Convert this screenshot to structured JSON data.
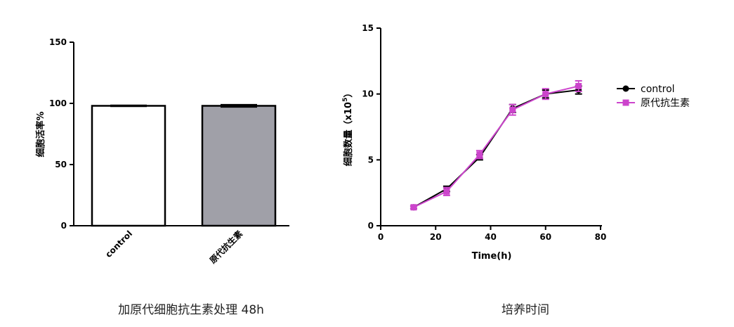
{
  "chart_data": [
    {
      "type": "bar",
      "categories": [
        "control",
        "原代抗生素"
      ],
      "values": [
        98,
        98
      ],
      "errors": [
        1,
        1.5
      ],
      "colors": [
        "#ffffff",
        "#a0a0a8"
      ],
      "ylabel": "细胞活率%",
      "yticks": [
        0,
        50,
        100,
        150
      ],
      "ylim": [
        0,
        150
      ],
      "caption": "加原代细胞抗生素处理 48h"
    },
    {
      "type": "line",
      "x": [
        12,
        24,
        36,
        48,
        60,
        72
      ],
      "series": [
        {
          "name": "control",
          "color": "#000000",
          "marker": "circle",
          "values": [
            1.4,
            2.8,
            5.2,
            8.9,
            10.0,
            10.3
          ],
          "errors": [
            0.1,
            0.2,
            0.2,
            0.3,
            0.3,
            0.3
          ]
        },
        {
          "name": "原代抗生素",
          "color": "#cc44cc",
          "marker": "square",
          "values": [
            1.4,
            2.6,
            5.4,
            8.8,
            10.0,
            10.6
          ],
          "errors": [
            0.1,
            0.3,
            0.3,
            0.4,
            0.4,
            0.4
          ]
        }
      ],
      "xlabel": "Time(h)",
      "ylabel_main": "细胞数量（x10",
      "ylabel_exp": "5",
      "ylabel_close": "）",
      "xticks": [
        0,
        20,
        40,
        60,
        80
      ],
      "yticks": [
        0,
        5,
        10,
        15
      ],
      "xlim": [
        0,
        80
      ],
      "ylim": [
        0,
        15
      ],
      "legend_position": "right",
      "caption": "培养时间"
    }
  ]
}
